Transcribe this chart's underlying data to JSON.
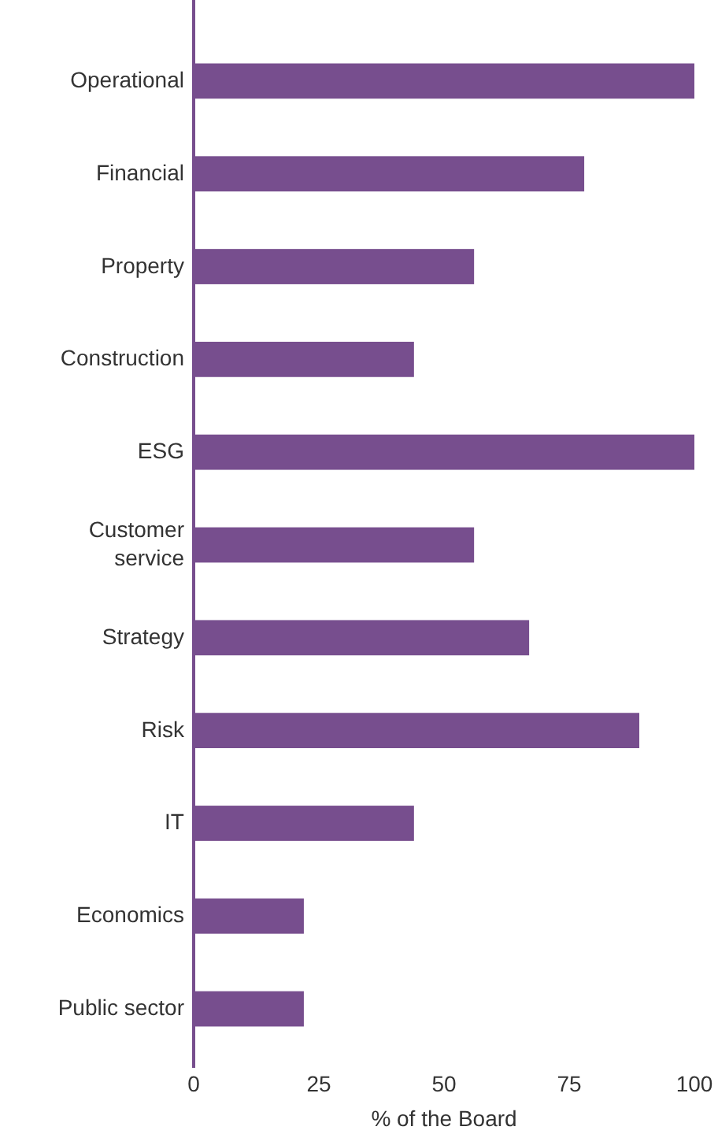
{
  "chart_data": {
    "type": "bar",
    "orientation": "horizontal",
    "xlabel": "% of the Board",
    "categories": [
      "Operational",
      "Financial",
      "Property",
      "Construction",
      "ESG",
      "Customer service",
      "Strategy",
      "Risk",
      "IT",
      "Economics",
      "Public sector"
    ],
    "values": [
      100,
      78,
      56,
      44,
      100,
      56,
      67,
      89,
      44,
      22,
      22
    ],
    "color": "#774e8e",
    "xlim": [
      0,
      100
    ],
    "xticks": [
      0,
      25,
      50,
      75,
      100
    ]
  }
}
